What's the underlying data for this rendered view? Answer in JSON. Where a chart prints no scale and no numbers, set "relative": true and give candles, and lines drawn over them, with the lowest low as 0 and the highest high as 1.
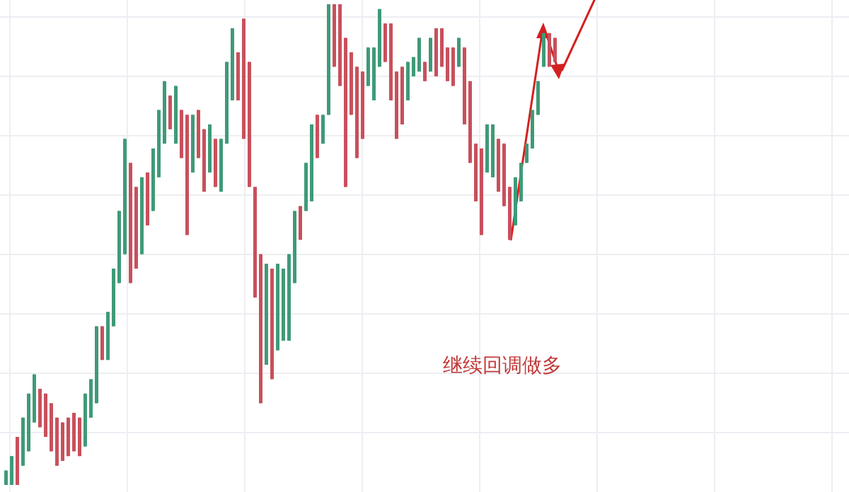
{
  "chart_data": {
    "type": "candlestick",
    "relative": true,
    "grid": true,
    "annotations": [
      "继续回调做多"
    ],
    "categories": [
      null,
      null,
      null,
      null,
      null,
      null,
      null,
      null,
      null,
      null,
      null,
      null,
      null,
      null,
      null,
      null,
      null,
      null,
      null,
      null,
      null,
      null,
      null,
      null,
      null,
      null,
      null,
      null,
      null,
      null,
      null,
      null,
      null,
      null,
      null,
      null,
      null,
      null,
      null,
      null,
      null,
      null,
      null,
      null,
      null,
      null,
      null,
      null,
      null,
      null,
      null,
      null,
      null,
      null,
      null,
      null,
      null,
      null,
      null,
      null,
      null,
      null,
      null,
      null,
      null,
      null,
      null,
      null,
      null,
      null,
      null,
      null,
      null,
      null,
      null,
      null,
      null,
      null,
      null,
      null,
      null,
      null,
      null,
      null,
      null,
      null,
      null,
      null,
      null,
      null,
      null,
      null,
      null,
      null,
      null,
      null,
      null,
      null
    ],
    "ohlc": [
      [
        0,
        0.03,
        0,
        0.03
      ],
      [
        0,
        0.06,
        0,
        0.06
      ],
      [
        0.1,
        0.1,
        0,
        0
      ],
      [
        0.04,
        0.14,
        0.04,
        0.14
      ],
      [
        0.07,
        0.19,
        0.07,
        0.19
      ],
      [
        0.13,
        0.23,
        0.13,
        0.23
      ],
      [
        0.2,
        0.2,
        0.12,
        0.12
      ],
      [
        0.19,
        0.19,
        0.1,
        0.1
      ],
      [
        0.17,
        0.17,
        0.07,
        0.07
      ],
      [
        0.14,
        0.14,
        0.04,
        0.04
      ],
      [
        0.13,
        0.13,
        0.05,
        0.05
      ],
      [
        0.14,
        0.14,
        0.06,
        0.06
      ],
      [
        0.15,
        0.15,
        0.07,
        0.07
      ],
      [
        0.14,
        0.14,
        0.06,
        0.06
      ],
      [
        0.08,
        0.19,
        0.08,
        0.19
      ],
      [
        0.14,
        0.22,
        0.14,
        0.22
      ],
      [
        0.17,
        0.33,
        0.17,
        0.33
      ],
      [
        0.33,
        0.33,
        0.26,
        0.26
      ],
      [
        0.26,
        0.36,
        0.26,
        0.36
      ],
      [
        0.33,
        0.45,
        0.33,
        0.45
      ],
      [
        0.42,
        0.57,
        0.42,
        0.57
      ],
      [
        0.48,
        0.72,
        0.48,
        0.72
      ],
      [
        0.67,
        0.67,
        0.42,
        0.42
      ],
      [
        0.62,
        0.62,
        0.45,
        0.45
      ],
      [
        0.48,
        0.64,
        0.48,
        0.64
      ],
      [
        0.65,
        0.65,
        0.54,
        0.54
      ],
      [
        0.57,
        0.7,
        0.57,
        0.7
      ],
      [
        0.64,
        0.78,
        0.64,
        0.78
      ],
      [
        0.71,
        0.84,
        0.71,
        0.84
      ],
      [
        0.81,
        0.81,
        0.74,
        0.74
      ],
      [
        0.71,
        0.83,
        0.71,
        0.83
      ],
      [
        0.78,
        0.78,
        0.68,
        0.68
      ],
      [
        0.77,
        0.77,
        0.52,
        0.52
      ],
      [
        0.65,
        0.77,
        0.65,
        0.77
      ],
      [
        0.78,
        0.78,
        0.68,
        0.68
      ],
      [
        0.74,
        0.74,
        0.61,
        0.61
      ],
      [
        0.65,
        0.75,
        0.65,
        0.75
      ],
      [
        0.72,
        0.72,
        0.62,
        0.62
      ],
      [
        0.61,
        0.72,
        0.61,
        0.72
      ],
      [
        0.71,
        0.88,
        0.71,
        0.88
      ],
      [
        0.8,
        0.95,
        0.8,
        0.95
      ],
      [
        0.9,
        0.9,
        0.8,
        0.8
      ],
      [
        0.97,
        0.97,
        0.72,
        0.72
      ],
      [
        0.88,
        0.88,
        0.62,
        0.62
      ],
      [
        0.62,
        0.62,
        0.39,
        0.39
      ],
      [
        0.48,
        0.48,
        0.17,
        0.17
      ],
      [
        0.25,
        0.46,
        0.25,
        0.46
      ],
      [
        0.45,
        0.45,
        0.22,
        0.22
      ],
      [
        0.28,
        0.46,
        0.28,
        0.46
      ],
      [
        0.3,
        0.45,
        0.3,
        0.45
      ],
      [
        0.3,
        0.48,
        0.3,
        0.48
      ],
      [
        0.42,
        0.57,
        0.42,
        0.57
      ],
      [
        0.58,
        0.58,
        0.51,
        0.51
      ],
      [
        0.57,
        0.67,
        0.57,
        0.67
      ],
      [
        0.59,
        0.75,
        0.59,
        0.75
      ],
      [
        0.77,
        0.77,
        0.68,
        0.68
      ],
      [
        0.71,
        0.77,
        0.71,
        0.77
      ],
      [
        0.77,
        1,
        0.77,
        1
      ],
      [
        1,
        1,
        0.87,
        0.87
      ],
      [
        1,
        1,
        0.83,
        0.83
      ],
      [
        0.93,
        0.93,
        0.62,
        0.62
      ],
      [
        0.9,
        0.9,
        0.77,
        0.77
      ],
      [
        0.87,
        0.87,
        0.68,
        0.68
      ],
      [
        0.86,
        0.86,
        0.72,
        0.72
      ],
      [
        0.83,
        0.91,
        0.83,
        0.91
      ],
      [
        0.8,
        0.91,
        0.8,
        0.91
      ],
      [
        0.87,
        0.99,
        0.87,
        0.99
      ],
      [
        0.96,
        0.96,
        0.88,
        0.88
      ],
      [
        0.96,
        0.96,
        0.8,
        0.8
      ],
      [
        0.86,
        0.86,
        0.72,
        0.72
      ],
      [
        0.87,
        0.87,
        0.75,
        0.75
      ],
      [
        0.8,
        0.88,
        0.8,
        0.88
      ],
      [
        0.85,
        0.89,
        0.85,
        0.89
      ],
      [
        0.86,
        0.93,
        0.86,
        0.93
      ],
      [
        0.88,
        0.88,
        0.84,
        0.84
      ],
      [
        0.86,
        0.93,
        0.86,
        0.93
      ],
      [
        0.95,
        0.95,
        0.85,
        0.85
      ],
      [
        0.95,
        0.95,
        0.87,
        0.87
      ],
      [
        0.91,
        0.91,
        0.84,
        0.84
      ],
      [
        0.91,
        0.91,
        0.83,
        0.83
      ],
      [
        0.87,
        0.93,
        0.87,
        0.93
      ],
      [
        0.91,
        0.91,
        0.75,
        0.75
      ],
      [
        0.84,
        0.84,
        0.67,
        0.67
      ],
      [
        0.71,
        0.71,
        0.59,
        0.59
      ],
      [
        0.7,
        0.7,
        0.52,
        0.52
      ],
      [
        0.65,
        0.75,
        0.65,
        0.75
      ],
      [
        0.64,
        0.75,
        0.64,
        0.75
      ],
      [
        0.72,
        0.72,
        0.61,
        0.61
      ],
      [
        0.71,
        0.71,
        0.58,
        0.58
      ],
      [
        0.62,
        0.62,
        0.51,
        0.51
      ],
      [
        0.54,
        0.64,
        0.54,
        0.64
      ],
      [
        0.59,
        0.67,
        0.59,
        0.67
      ],
      [
        0.67,
        0.71,
        0.67,
        0.71
      ],
      [
        0.7,
        0.78,
        0.7,
        0.78
      ],
      [
        0.77,
        0.84,
        0.77,
        0.84
      ],
      [
        0.87,
        0.94,
        0.87,
        0.94
      ],
      [
        0.94,
        0.94,
        0.87,
        0.87
      ],
      [
        0.93,
        0.93,
        0.88,
        0.88
      ]
    ],
    "colors": [
      "#3f9a78",
      "#3f9a78",
      "#c8505c",
      "#3f9a78",
      "#3f9a78",
      "#3f9a78",
      "#c8505c",
      "#c8505c",
      "#c8505c",
      "#c8505c",
      "#c8505c",
      "#c8505c",
      "#c8505c",
      "#c8505c",
      "#3f9a78",
      "#3f9a78",
      "#3f9a78",
      "#c8505c",
      "#3f9a78",
      "#3f9a78",
      "#3f9a78",
      "#3f9a78",
      "#c8505c",
      "#c8505c",
      "#3f9a78",
      "#c8505c",
      "#3f9a78",
      "#3f9a78",
      "#3f9a78",
      "#c8505c",
      "#3f9a78",
      "#c8505c",
      "#c8505c",
      "#3f9a78",
      "#c8505c",
      "#c8505c",
      "#3f9a78",
      "#c8505c",
      "#3f9a78",
      "#3f9a78",
      "#3f9a78",
      "#c8505c",
      "#c8505c",
      "#c8505c",
      "#c8505c",
      "#c8505c",
      "#3f9a78",
      "#c8505c",
      "#3f9a78",
      "#3f9a78",
      "#3f9a78",
      "#3f9a78",
      "#c8505c",
      "#3f9a78",
      "#3f9a78",
      "#c8505c",
      "#3f9a78",
      "#3f9a78",
      "#c8505c",
      "#c8505c",
      "#c8505c",
      "#c8505c",
      "#c8505c",
      "#c8505c",
      "#3f9a78",
      "#3f9a78",
      "#3f9a78",
      "#c8505c",
      "#c8505c",
      "#c8505c",
      "#c8505c",
      "#3f9a78",
      "#3f9a78",
      "#3f9a78",
      "#c8505c",
      "#3f9a78",
      "#c8505c",
      "#c8505c",
      "#c8505c",
      "#c8505c",
      "#3f9a78",
      "#c8505c",
      "#c8505c",
      "#c8505c",
      "#c8505c",
      "#3f9a78",
      "#3f9a78",
      "#c8505c",
      "#c8505c",
      "#c8505c",
      "#3f9a78",
      "#3f9a78",
      "#3f9a78",
      "#3f9a78",
      "#3f9a78",
      "#3f9a78",
      "#c8505c",
      "#c8505c"
    ]
  }
}
